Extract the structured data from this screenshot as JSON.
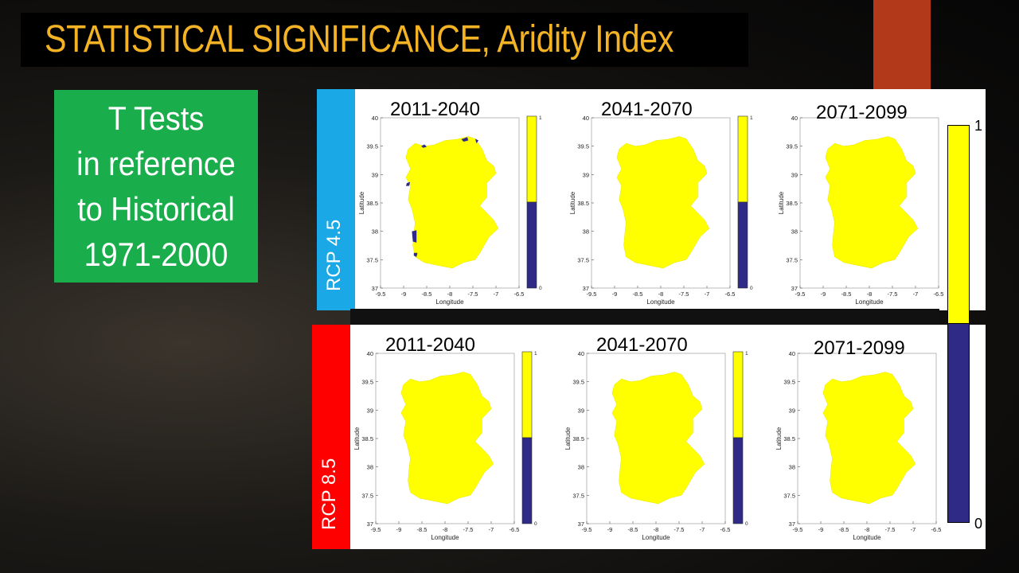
{
  "slide": {
    "title": "STATISTICAL SIGNIFICANCE, Aridity Index",
    "info_lines": [
      "T Tests",
      "in reference",
      "to Historical",
      "1971-2000"
    ]
  },
  "colors": {
    "title": "#f4b324",
    "info_box": "#1aad4b",
    "rcp45": "#1aa8e6",
    "rcp85": "#ff0000",
    "significant": "#ffff00",
    "not_significant": "#2e2a86"
  },
  "rows": [
    {
      "label": "RCP 4.5",
      "maps": [
        {
          "period": "2011-2040",
          "has_colorbar": true,
          "blue_patches": true
        },
        {
          "period": "2041-2070",
          "has_colorbar": true,
          "blue_patches": false
        },
        {
          "period": "2071-2099",
          "has_colorbar": false,
          "blue_patches": false
        }
      ]
    },
    {
      "label": "RCP 8.5",
      "maps": [
        {
          "period": "2011-2040",
          "has_colorbar": true,
          "blue_patches": false
        },
        {
          "period": "2041-2070",
          "has_colorbar": true,
          "blue_patches": false
        },
        {
          "period": "2071-2099",
          "has_colorbar": false,
          "blue_patches": false
        }
      ]
    }
  ],
  "axes": {
    "xlabel": "Longitude",
    "ylabel": "Latitude",
    "x_ticks": [
      "-9.5",
      "-9",
      "-8.5",
      "-8",
      "-7.5",
      "-7",
      "-6.5"
    ],
    "y_ticks": [
      "40",
      "39.5",
      "39",
      "38.5",
      "38",
      "37.5",
      "37"
    ]
  },
  "colorbar_small": {
    "max": "1",
    "min": "0"
  },
  "colorbar_large": {
    "max": "1",
    "min": "0"
  }
}
